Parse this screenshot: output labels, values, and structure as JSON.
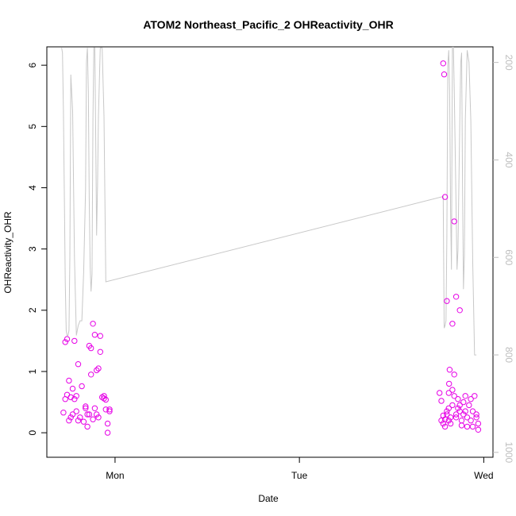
{
  "chart_data": {
    "type": "scatter",
    "title": "ATOM2 Northeast_Pacific_2 OHReactivity_OHR",
    "xlabel": "Date",
    "ylabel": "OHReactivity_OHR",
    "x_ticks": [
      {
        "label": "Mon",
        "day": 1.0
      },
      {
        "label": "Tue",
        "day": 2.0
      },
      {
        "label": "Wed",
        "day": 3.0
      }
    ],
    "xlim_days": [
      0.63,
      3.05
    ],
    "ylim": [
      -0.4,
      6.3
    ],
    "y_ticks": [
      0,
      1,
      2,
      3,
      4,
      5,
      6
    ],
    "y2_ticks": [
      200,
      400,
      600,
      800,
      1000
    ],
    "y2lim_reversed": [
      1010,
      168
    ],
    "grid": false,
    "colors": {
      "points": "#e600e6",
      "altitude_line": "#c8c8c8"
    },
    "series": [
      {
        "marker": "open-circle",
        "x": [
          0.72,
          0.73,
          0.73,
          0.74,
          0.74,
          0.75,
          0.75,
          0.76,
          0.76,
          0.77,
          0.77,
          0.78,
          0.78,
          0.79,
          0.79,
          0.8,
          0.8,
          0.81,
          0.82,
          0.83,
          0.84,
          0.84,
          0.85,
          0.85,
          0.86,
          0.86,
          0.87,
          0.87,
          0.88,
          0.88,
          0.89,
          0.89,
          0.9,
          0.9,
          0.91,
          0.91,
          0.92,
          0.92,
          0.93,
          0.94,
          0.94,
          0.95,
          0.95,
          0.96,
          0.96,
          0.97,
          0.97,
          2.76,
          2.77,
          2.77,
          2.78,
          2.78,
          2.79,
          2.79,
          2.8,
          2.8,
          2.81,
          2.81,
          2.82,
          2.82,
          2.83,
          2.83,
          2.84,
          2.84,
          2.85,
          2.85,
          2.86,
          2.86,
          2.87,
          2.87,
          2.88,
          2.88,
          2.89,
          2.89,
          2.9,
          2.9,
          2.91,
          2.91,
          2.92,
          2.93,
          2.93,
          2.94,
          2.94,
          2.95,
          2.96,
          2.96,
          2.97,
          2.97,
          2.78,
          2.785,
          2.79,
          2.8,
          2.81,
          2.812,
          2.815,
          2.83,
          2.84,
          2.85,
          2.87
        ],
        "y": [
          0.33,
          0.55,
          1.48,
          0.62,
          1.53,
          0.2,
          0.85,
          0.58,
          0.25,
          0.72,
          0.3,
          0.55,
          1.5,
          0.35,
          0.6,
          0.2,
          1.12,
          0.25,
          0.76,
          0.18,
          0.43,
          0.4,
          0.1,
          0.3,
          0.3,
          1.42,
          1.38,
          0.95,
          1.78,
          0.22,
          1.6,
          0.4,
          1.02,
          0.3,
          0.25,
          1.05,
          1.58,
          1.32,
          0.58,
          0.6,
          0.56,
          0.38,
          0.54,
          0.15,
          0.0,
          0.38,
          0.35,
          0.65,
          0.2,
          0.52,
          0.15,
          0.28,
          0.22,
          0.1,
          0.3,
          0.35,
          0.4,
          0.2,
          0.25,
          0.15,
          0.7,
          0.45,
          0.95,
          0.6,
          0.3,
          0.25,
          0.55,
          0.4,
          0.35,
          0.45,
          0.2,
          0.12,
          0.3,
          0.5,
          0.6,
          0.35,
          0.25,
          0.1,
          0.45,
          0.55,
          0.2,
          0.35,
          0.1,
          0.6,
          0.25,
          0.3,
          0.15,
          0.05,
          6.03,
          5.85,
          3.85,
          2.15,
          0.65,
          0.8,
          1.03,
          1.78,
          3.45,
          2.22,
          2.0
        ]
      }
    ],
    "altitude_line": {
      "axis": "right",
      "x": [
        0.71,
        0.715,
        0.72,
        0.725,
        0.73,
        0.735,
        0.74,
        0.745,
        0.75,
        0.755,
        0.76,
        0.77,
        0.78,
        0.79,
        0.8,
        0.81,
        0.82,
        0.83,
        0.84,
        0.845,
        0.85,
        0.855,
        0.86,
        0.865,
        0.87,
        0.875,
        0.88,
        0.885,
        0.89,
        0.895,
        0.9,
        0.905,
        0.91,
        0.92,
        0.93,
        0.94,
        0.95,
        2.78,
        2.785,
        2.79,
        2.795,
        2.8,
        2.805,
        2.81,
        2.815,
        2.82,
        2.825,
        2.83,
        2.835,
        2.84,
        2.85,
        2.855,
        2.86,
        2.865,
        2.87,
        2.875,
        2.88,
        2.885,
        2.89,
        2.895,
        2.9,
        2.91,
        2.92,
        2.93,
        2.94,
        2.95,
        2.96
      ],
      "y": [
        170,
        180,
        300,
        480,
        650,
        750,
        760,
        760,
        750,
        600,
        225,
        300,
        600,
        760,
        740,
        730,
        730,
        630,
        460,
        200,
        170,
        260,
        480,
        620,
        670,
        635,
        315,
        170,
        170,
        340,
        555,
        450,
        310,
        170,
        170,
        310,
        650,
        475,
        745,
        740,
        730,
        560,
        205,
        175,
        260,
        505,
        625,
        165,
        165,
        255,
        505,
        625,
        585,
        455,
        320,
        200,
        180,
        465,
        665,
        595,
        315,
        175,
        200,
        320,
        610,
        800,
        800
      ]
    }
  }
}
